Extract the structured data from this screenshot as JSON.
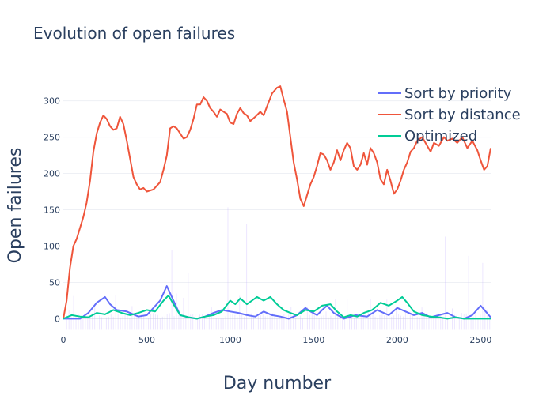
{
  "chart_data": {
    "type": "line",
    "title": "Evolution of open failures",
    "xlabel": "Day number",
    "ylabel": "Open failures",
    "xlim": [
      0,
      2560
    ],
    "ylim": [
      -18,
      330
    ],
    "x_ticks": [
      "0",
      "500",
      "1000",
      "1500",
      "2000",
      "2500"
    ],
    "y_ticks": [
      "0",
      "50",
      "100",
      "150",
      "200",
      "250",
      "300"
    ],
    "grid": true,
    "legend_position": "top-right",
    "series": [
      {
        "name": "Sort by priority",
        "color": "#636efa",
        "points": [
          [
            0,
            0
          ],
          [
            100,
            0
          ],
          [
            150,
            8
          ],
          [
            200,
            22
          ],
          [
            250,
            30
          ],
          [
            280,
            20
          ],
          [
            320,
            12
          ],
          [
            380,
            10
          ],
          [
            450,
            3
          ],
          [
            500,
            5
          ],
          [
            540,
            15
          ],
          [
            580,
            25
          ],
          [
            620,
            45
          ],
          [
            660,
            25
          ],
          [
            700,
            5
          ],
          [
            750,
            2
          ],
          [
            800,
            0
          ],
          [
            850,
            3
          ],
          [
            900,
            8
          ],
          [
            950,
            12
          ],
          [
            1000,
            10
          ],
          [
            1050,
            8
          ],
          [
            1100,
            5
          ],
          [
            1150,
            3
          ],
          [
            1200,
            10
          ],
          [
            1250,
            5
          ],
          [
            1300,
            3
          ],
          [
            1350,
            0
          ],
          [
            1400,
            5
          ],
          [
            1450,
            15
          ],
          [
            1480,
            10
          ],
          [
            1520,
            5
          ],
          [
            1550,
            12
          ],
          [
            1580,
            18
          ],
          [
            1620,
            8
          ],
          [
            1680,
            0
          ],
          [
            1750,
            5
          ],
          [
            1820,
            3
          ],
          [
            1880,
            12
          ],
          [
            1950,
            5
          ],
          [
            2000,
            15
          ],
          [
            2050,
            10
          ],
          [
            2100,
            5
          ],
          [
            2150,
            8
          ],
          [
            2200,
            2
          ],
          [
            2250,
            5
          ],
          [
            2300,
            8
          ],
          [
            2350,
            2
          ],
          [
            2400,
            0
          ],
          [
            2450,
            5
          ],
          [
            2500,
            18
          ],
          [
            2530,
            10
          ],
          [
            2560,
            2
          ]
        ]
      },
      {
        "name": "Sort by distance",
        "color": "#ef553b",
        "points": [
          [
            0,
            0
          ],
          [
            20,
            25
          ],
          [
            40,
            70
          ],
          [
            60,
            100
          ],
          [
            80,
            110
          ],
          [
            100,
            125
          ],
          [
            120,
            140
          ],
          [
            140,
            160
          ],
          [
            160,
            190
          ],
          [
            180,
            230
          ],
          [
            200,
            255
          ],
          [
            220,
            270
          ],
          [
            240,
            280
          ],
          [
            260,
            275
          ],
          [
            280,
            265
          ],
          [
            300,
            260
          ],
          [
            320,
            262
          ],
          [
            340,
            278
          ],
          [
            360,
            268
          ],
          [
            380,
            245
          ],
          [
            400,
            220
          ],
          [
            420,
            195
          ],
          [
            440,
            185
          ],
          [
            460,
            178
          ],
          [
            480,
            180
          ],
          [
            500,
            175
          ],
          [
            540,
            178
          ],
          [
            580,
            188
          ],
          [
            600,
            205
          ],
          [
            620,
            225
          ],
          [
            640,
            262
          ],
          [
            660,
            265
          ],
          [
            680,
            262
          ],
          [
            700,
            255
          ],
          [
            720,
            248
          ],
          [
            740,
            250
          ],
          [
            760,
            260
          ],
          [
            780,
            275
          ],
          [
            800,
            295
          ],
          [
            820,
            295
          ],
          [
            840,
            305
          ],
          [
            860,
            300
          ],
          [
            880,
            290
          ],
          [
            900,
            285
          ],
          [
            920,
            278
          ],
          [
            940,
            288
          ],
          [
            960,
            285
          ],
          [
            980,
            282
          ],
          [
            1000,
            270
          ],
          [
            1020,
            268
          ],
          [
            1040,
            282
          ],
          [
            1060,
            290
          ],
          [
            1080,
            283
          ],
          [
            1100,
            280
          ],
          [
            1120,
            272
          ],
          [
            1150,
            278
          ],
          [
            1180,
            285
          ],
          [
            1200,
            280
          ],
          [
            1220,
            292
          ],
          [
            1250,
            310
          ],
          [
            1280,
            318
          ],
          [
            1300,
            320
          ],
          [
            1320,
            302
          ],
          [
            1340,
            285
          ],
          [
            1360,
            250
          ],
          [
            1380,
            215
          ],
          [
            1400,
            192
          ],
          [
            1420,
            165
          ],
          [
            1440,
            155
          ],
          [
            1460,
            170
          ],
          [
            1480,
            185
          ],
          [
            1500,
            195
          ],
          [
            1520,
            210
          ],
          [
            1540,
            228
          ],
          [
            1560,
            226
          ],
          [
            1580,
            218
          ],
          [
            1600,
            205
          ],
          [
            1620,
            215
          ],
          [
            1640,
            232
          ],
          [
            1660,
            218
          ],
          [
            1680,
            232
          ],
          [
            1700,
            242
          ],
          [
            1720,
            235
          ],
          [
            1740,
            210
          ],
          [
            1760,
            205
          ],
          [
            1780,
            212
          ],
          [
            1800,
            228
          ],
          [
            1820,
            212
          ],
          [
            1840,
            235
          ],
          [
            1860,
            228
          ],
          [
            1880,
            215
          ],
          [
            1900,
            192
          ],
          [
            1920,
            185
          ],
          [
            1940,
            205
          ],
          [
            1960,
            190
          ],
          [
            1980,
            172
          ],
          [
            2000,
            178
          ],
          [
            2020,
            190
          ],
          [
            2040,
            205
          ],
          [
            2060,
            215
          ],
          [
            2080,
            230
          ],
          [
            2100,
            235
          ],
          [
            2120,
            245
          ],
          [
            2150,
            250
          ],
          [
            2180,
            238
          ],
          [
            2200,
            230
          ],
          [
            2220,
            242
          ],
          [
            2250,
            238
          ],
          [
            2280,
            250
          ],
          [
            2300,
            245
          ],
          [
            2330,
            248
          ],
          [
            2360,
            242
          ],
          [
            2390,
            250
          ],
          [
            2420,
            235
          ],
          [
            2450,
            245
          ],
          [
            2480,
            232
          ],
          [
            2500,
            218
          ],
          [
            2520,
            205
          ],
          [
            2540,
            210
          ],
          [
            2560,
            235
          ]
        ]
      },
      {
        "name": "Optimized",
        "color": "#00cc96",
        "points": [
          [
            0,
            0
          ],
          [
            50,
            5
          ],
          [
            100,
            3
          ],
          [
            150,
            2
          ],
          [
            200,
            8
          ],
          [
            250,
            6
          ],
          [
            300,
            12
          ],
          [
            350,
            8
          ],
          [
            400,
            5
          ],
          [
            450,
            8
          ],
          [
            500,
            12
          ],
          [
            550,
            10
          ],
          [
            600,
            25
          ],
          [
            630,
            32
          ],
          [
            660,
            20
          ],
          [
            700,
            5
          ],
          [
            750,
            2
          ],
          [
            800,
            0
          ],
          [
            850,
            3
          ],
          [
            900,
            5
          ],
          [
            950,
            10
          ],
          [
            1000,
            25
          ],
          [
            1030,
            20
          ],
          [
            1060,
            28
          ],
          [
            1100,
            20
          ],
          [
            1130,
            25
          ],
          [
            1160,
            30
          ],
          [
            1200,
            25
          ],
          [
            1240,
            30
          ],
          [
            1280,
            20
          ],
          [
            1320,
            12
          ],
          [
            1360,
            8
          ],
          [
            1400,
            5
          ],
          [
            1450,
            12
          ],
          [
            1500,
            10
          ],
          [
            1550,
            18
          ],
          [
            1600,
            20
          ],
          [
            1640,
            10
          ],
          [
            1680,
            2
          ],
          [
            1720,
            5
          ],
          [
            1760,
            3
          ],
          [
            1800,
            8
          ],
          [
            1850,
            12
          ],
          [
            1900,
            22
          ],
          [
            1950,
            18
          ],
          [
            2000,
            25
          ],
          [
            2030,
            30
          ],
          [
            2060,
            22
          ],
          [
            2100,
            10
          ],
          [
            2150,
            5
          ],
          [
            2200,
            3
          ],
          [
            2250,
            2
          ],
          [
            2300,
            0
          ],
          [
            2350,
            2
          ],
          [
            2400,
            0
          ],
          [
            2450,
            0
          ],
          [
            2500,
            0
          ],
          [
            2560,
            0
          ]
        ]
      }
    ]
  }
}
